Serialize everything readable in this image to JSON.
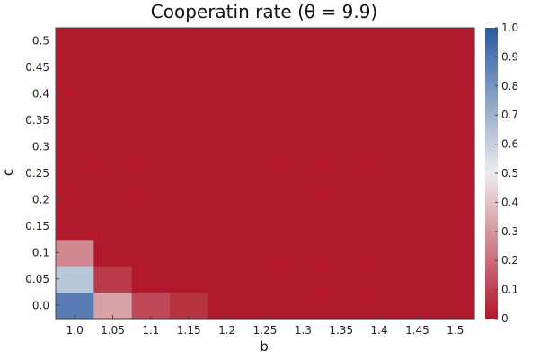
{
  "chart_data": {
    "type": "heatmap",
    "title": "Cooperatin rate (θ = 9.9)",
    "xlabel": "b",
    "ylabel": "c",
    "x": [
      1.0,
      1.05,
      1.1,
      1.15,
      1.2,
      1.25,
      1.3,
      1.35,
      1.4,
      1.45,
      1.5
    ],
    "y": [
      0.0,
      0.05,
      0.1,
      0.15,
      0.2,
      0.25,
      0.3,
      0.35,
      0.4,
      0.45,
      0.5
    ],
    "x_tick_labels": [
      "1.0",
      "1.05",
      "1.1",
      "1.15",
      "1.2",
      "1.25",
      "1.3",
      "1.35",
      "1.4",
      "1.45",
      "1.5"
    ],
    "y_tick_labels": [
      "0.0",
      "0.05",
      "0.1",
      "0.15",
      "0.2",
      "0.25",
      "0.3",
      "0.35",
      "0.4",
      "0.45",
      "0.5"
    ],
    "z": [
      [
        0.88,
        0.32,
        0.11,
        0.06,
        0,
        0,
        0,
        0,
        0,
        0,
        0
      ],
      [
        0.63,
        0.08,
        0,
        0,
        0,
        0,
        0,
        0,
        0,
        0,
        0
      ],
      [
        0.26,
        0,
        0,
        0,
        0,
        0,
        0,
        0,
        0,
        0,
        0
      ],
      [
        0,
        0,
        0,
        0,
        0,
        0,
        0,
        0,
        0,
        0,
        0
      ],
      [
        0,
        0,
        0,
        0,
        0,
        0,
        0,
        0,
        0,
        0,
        0
      ],
      [
        0,
        0,
        0,
        0,
        0,
        0,
        0,
        0,
        0,
        0,
        0
      ],
      [
        0,
        0,
        0,
        0,
        0,
        0,
        0,
        0,
        0,
        0,
        0
      ],
      [
        0,
        0,
        0,
        0,
        0,
        0,
        0,
        0,
        0,
        0,
        0
      ],
      [
        0,
        0,
        0,
        0,
        0,
        0,
        0,
        0,
        0,
        0,
        0
      ],
      [
        0,
        0,
        0,
        0,
        0,
        0,
        0,
        0,
        0,
        0,
        0
      ],
      [
        0,
        0,
        0,
        0,
        0,
        0,
        0,
        0,
        0,
        0,
        0
      ]
    ],
    "zlim": [
      0,
      1
    ],
    "colorbar_ticks": [
      0,
      0.1,
      0.2,
      0.3,
      0.4,
      0.5,
      0.6,
      0.7,
      0.8,
      0.9,
      1.0
    ],
    "colorbar_tick_labels": [
      "0",
      "0.1",
      "0.2",
      "0.3",
      "0.4",
      "0.5",
      "0.6",
      "0.7",
      "0.8",
      "0.9",
      "1.0"
    ],
    "colormap": [
      "#b2182b",
      "#ededed",
      "#2a5aa1"
    ],
    "grid": false
  }
}
